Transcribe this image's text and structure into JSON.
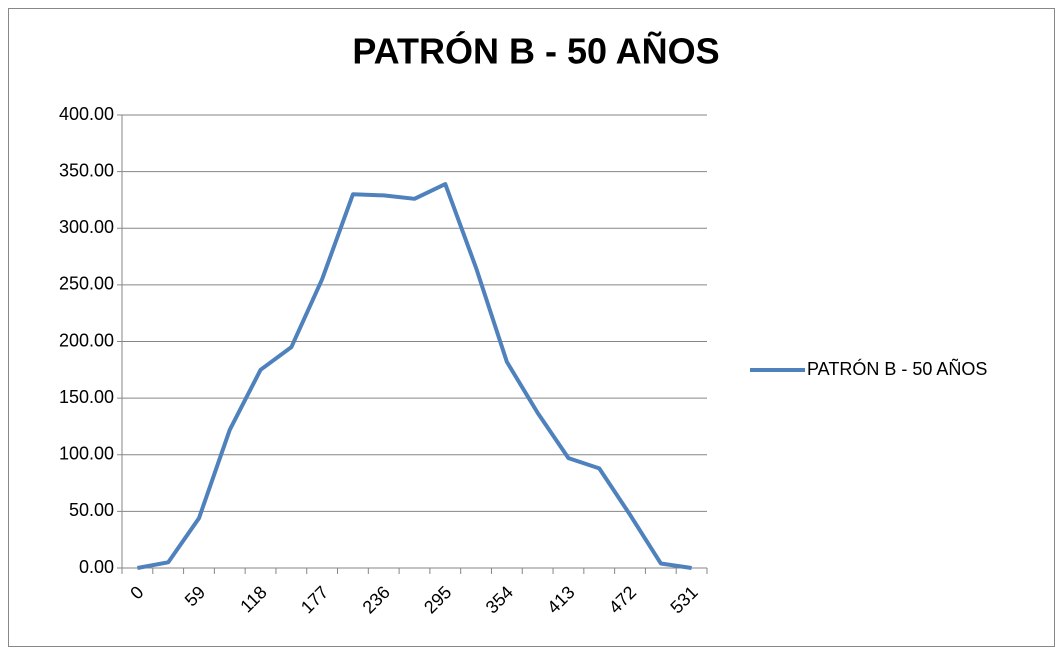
{
  "chart_data": {
    "type": "line",
    "title": "PATRÓN B - 50 AÑOS",
    "categories": [
      "0",
      null,
      "59",
      null,
      "118",
      null,
      "177",
      null,
      "236",
      null,
      "295",
      null,
      "354",
      null,
      "413",
      null,
      "472",
      null,
      "531"
    ],
    "series": [
      {
        "name": "PATRÓN B - 50 AÑOS",
        "color": "#4f81bd",
        "values": [
          0,
          5,
          44,
          122,
          175,
          195,
          255,
          330,
          329,
          326,
          339,
          265,
          182,
          137,
          97,
          88,
          47,
          4,
          0
        ]
      }
    ],
    "ylim": [
      0,
      400
    ],
    "yticks": [
      {
        "value": 0,
        "label": "0.00"
      },
      {
        "value": 50,
        "label": "50.00"
      },
      {
        "value": 100,
        "label": "100.00"
      },
      {
        "value": 150,
        "label": "150.00"
      },
      {
        "value": 200,
        "label": "200.00"
      },
      {
        "value": 250,
        "label": "250.00"
      },
      {
        "value": 300,
        "label": "300.00"
      },
      {
        "value": 350,
        "label": "350.00"
      },
      {
        "value": 400,
        "label": "400.00"
      }
    ],
    "grid": true,
    "legend": "right"
  }
}
